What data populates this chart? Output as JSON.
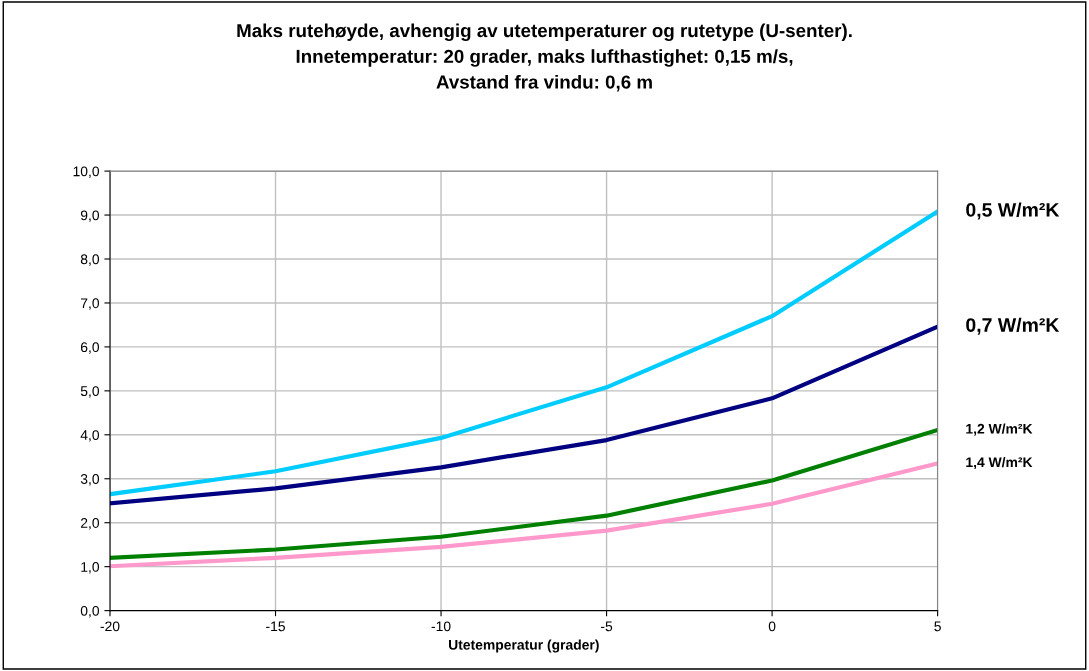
{
  "chart_data": {
    "type": "line",
    "title": "Maks rutehøyde, avhengig av utetemperaturer og rutetype (U-senter).\nInnetemperatur: 20 grader, maks lufthastighet: 0,15 m/s,\nAvstand fra vindu: 0,6 m",
    "xlabel": "Utetemperatur (grader)",
    "x": [
      -20,
      -15,
      -10,
      -5,
      0,
      5
    ],
    "series": [
      {
        "name": "0,5 W/m²K",
        "color": "#00ccff",
        "values": [
          2.65,
          3.17,
          3.93,
          5.08,
          6.7,
          9.08
        ]
      },
      {
        "name": "0,7 W/m²K",
        "color": "#000080",
        "values": [
          2.44,
          2.78,
          3.26,
          3.88,
          4.83,
          6.46
        ]
      },
      {
        "name": "1,2 W/m²K",
        "color": "#008000",
        "values": [
          1.2,
          1.39,
          1.68,
          2.16,
          2.96,
          4.11
        ]
      },
      {
        "name": "1,4 W/m²K",
        "color": "#ff99cc",
        "values": [
          1.01,
          1.2,
          1.45,
          1.82,
          2.43,
          3.35
        ]
      }
    ],
    "xlim": [
      -20,
      5
    ],
    "xticks": [
      -20,
      -15,
      -10,
      -5,
      0,
      5
    ],
    "ylim": [
      0,
      10
    ],
    "yticks": [
      {
        "value": 0,
        "label": "0,0"
      },
      {
        "value": 1,
        "label": "1,0"
      },
      {
        "value": 2,
        "label": "2,0"
      },
      {
        "value": 3,
        "label": "3,0"
      },
      {
        "value": 4,
        "label": "4,0"
      },
      {
        "value": 5,
        "label": "5,0"
      },
      {
        "value": 6,
        "label": "6,0"
      },
      {
        "value": 7,
        "label": "7,0"
      },
      {
        "value": 8,
        "label": "8,0"
      },
      {
        "value": 9,
        "label": "9,0"
      },
      {
        "value": 10,
        "label": "10,0"
      }
    ],
    "grid": true,
    "legend": false,
    "marker": "none",
    "line_style": "solid"
  }
}
